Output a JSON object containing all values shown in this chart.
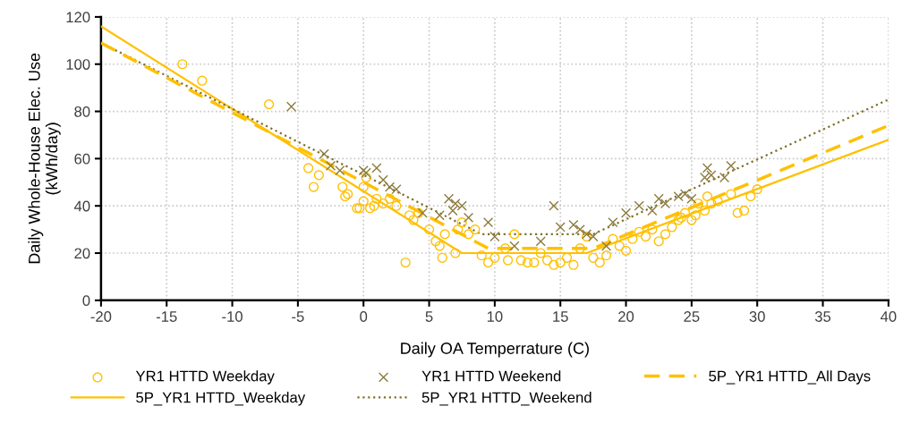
{
  "chart_data": {
    "type": "scatter",
    "xlabel": "Daily OA Temperrature (C)",
    "ylabel": "Daily Whole-House Elec. Use\n(kWh/day)",
    "xlim": [
      -20,
      40
    ],
    "xticks": [
      -20,
      -15,
      -10,
      -5,
      0,
      5,
      10,
      15,
      20,
      25,
      30,
      35,
      40
    ],
    "ylim": [
      0,
      120
    ],
    "yticks": [
      0,
      20,
      40,
      60,
      80,
      100,
      120
    ],
    "grid": true,
    "legend": "bottom",
    "series": [
      {
        "name": "YR1 HTTD Weekday",
        "marker": "circle",
        "color": "#ffc000",
        "x": [
          -13.8,
          -12.3,
          -7.2,
          -4.2,
          -3.8,
          -3.4,
          -1.6,
          -1.4,
          -1.2,
          -0.5,
          -0.3,
          0,
          0,
          0.2,
          0.5,
          0.8,
          1,
          1.5,
          2,
          2.5,
          3.2,
          3.5,
          3.8,
          4.2,
          5,
          5.5,
          5.8,
          6,
          6.2,
          7,
          7.2,
          7.5,
          8,
          8.5,
          9,
          9.5,
          10,
          10.8,
          11,
          11.5,
          12,
          12.5,
          13,
          13.5,
          14,
          14.5,
          15,
          15.5,
          16,
          16.5,
          17,
          17.5,
          18,
          18.5,
          19,
          19.5,
          20,
          20.5,
          21,
          21.5,
          22,
          22.5,
          23,
          23.5,
          24,
          24.2,
          24.5,
          25,
          25.3,
          25.5,
          26,
          26.2,
          26.5,
          27,
          28,
          28.5,
          29,
          29.5,
          30
        ],
        "values": [
          100,
          93,
          83,
          56,
          48,
          53,
          48,
          44,
          45,
          39,
          39,
          42,
          48,
          52,
          39,
          40,
          43,
          41,
          43,
          40,
          16,
          36,
          34,
          37,
          30,
          25,
          23,
          18,
          28,
          20,
          30,
          33,
          28,
          30,
          19,
          16,
          18,
          22,
          17,
          28,
          17,
          16,
          16,
          20,
          17,
          15,
          16,
          18,
          15,
          22,
          27,
          18,
          16,
          19,
          26,
          23,
          21,
          26,
          29,
          27,
          30,
          25,
          28,
          31,
          34,
          35,
          37,
          34,
          36,
          41,
          38,
          44,
          41,
          42,
          45,
          37,
          38,
          44,
          47
        ]
      },
      {
        "name": "5P_YR1 HTTD_Weekday",
        "type": "line",
        "line_style": "solid",
        "marker": "none",
        "color": "#ffc000",
        "x": [
          -20,
          7.5,
          17,
          40
        ],
        "values": [
          116,
          20,
          20,
          68
        ]
      },
      {
        "name": "YR1 HTTD Weekend",
        "marker": "cross",
        "color": "#8c7b3e",
        "x": [
          -5.5,
          -3,
          -2.5,
          -1.8,
          0,
          0.2,
          1,
          1.5,
          2,
          2.5,
          4.5,
          5.8,
          6.5,
          6.8,
          7,
          7.5,
          8,
          9.5,
          10,
          11.5,
          13.5,
          14.5,
          15,
          16,
          16.5,
          17,
          17.5,
          18.5,
          19,
          20,
          21,
          22,
          22.5,
          23,
          24,
          24.5,
          25,
          26,
          26.2,
          26.5,
          27.5,
          28
        ],
        "values": [
          82,
          62,
          57,
          55,
          55,
          54,
          56,
          51,
          48,
          47,
          37,
          36,
          43,
          38,
          41,
          40,
          35,
          33,
          27,
          23,
          25,
          40,
          31,
          32,
          30,
          28,
          27,
          23,
          33,
          37,
          40,
          38,
          43,
          41,
          44,
          45,
          43,
          52,
          56,
          53,
          52,
          57
        ]
      },
      {
        "name": "5P_YR1 HTTD_Weekend",
        "type": "line",
        "line_style": "dotted",
        "marker": "none",
        "color": "#7f6f2a",
        "x": [
          -20,
          9,
          17.5,
          40
        ],
        "values": [
          109,
          28,
          28,
          85
        ]
      },
      {
        "name": "5P_YR1 HTTD_All Days",
        "type": "line",
        "line_style": "dashed",
        "marker": "none",
        "color": "#ffc000",
        "x": [
          -20,
          9.5,
          17.5,
          40
        ],
        "values": [
          109,
          22,
          22,
          74
        ]
      }
    ]
  }
}
